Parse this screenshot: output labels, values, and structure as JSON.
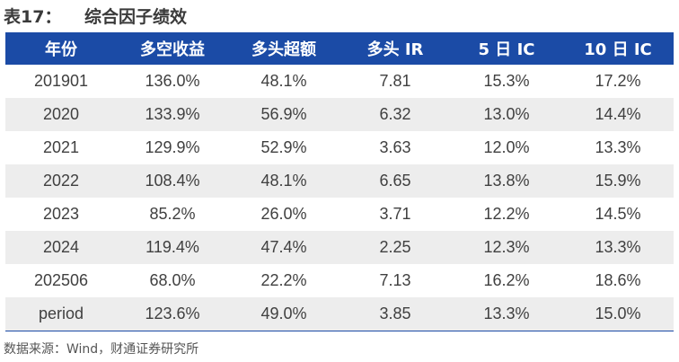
{
  "title": {
    "label": "表17：",
    "text": "综合因子绩效"
  },
  "table": {
    "headers": [
      "年份",
      "多空收益",
      "多头超额",
      "多头 IR",
      "5 日 IC",
      "10 日 IC"
    ],
    "rows": [
      [
        "201901",
        "136.0%",
        "48.1%",
        "7.81",
        "15.3%",
        "17.2%"
      ],
      [
        "2020",
        "133.9%",
        "56.9%",
        "6.32",
        "13.0%",
        "14.4%"
      ],
      [
        "2021",
        "129.9%",
        "52.9%",
        "3.63",
        "12.0%",
        "13.3%"
      ],
      [
        "2022",
        "108.4%",
        "48.1%",
        "6.65",
        "13.8%",
        "15.9%"
      ],
      [
        "2023",
        "85.2%",
        "26.0%",
        "3.71",
        "12.2%",
        "14.5%"
      ],
      [
        "2024",
        "119.4%",
        "47.4%",
        "2.25",
        "12.3%",
        "13.3%"
      ],
      [
        "202506",
        "68.0%",
        "22.2%",
        "7.13",
        "16.2%",
        "18.6%"
      ],
      [
        "period",
        "123.6%",
        "49.0%",
        "3.85",
        "13.3%",
        "15.0%"
      ]
    ]
  },
  "source": "数据来源：Wind，财通证券研究所",
  "colors": {
    "header_bg": "#1b4ba6",
    "stripe_bg": "#ededed"
  }
}
